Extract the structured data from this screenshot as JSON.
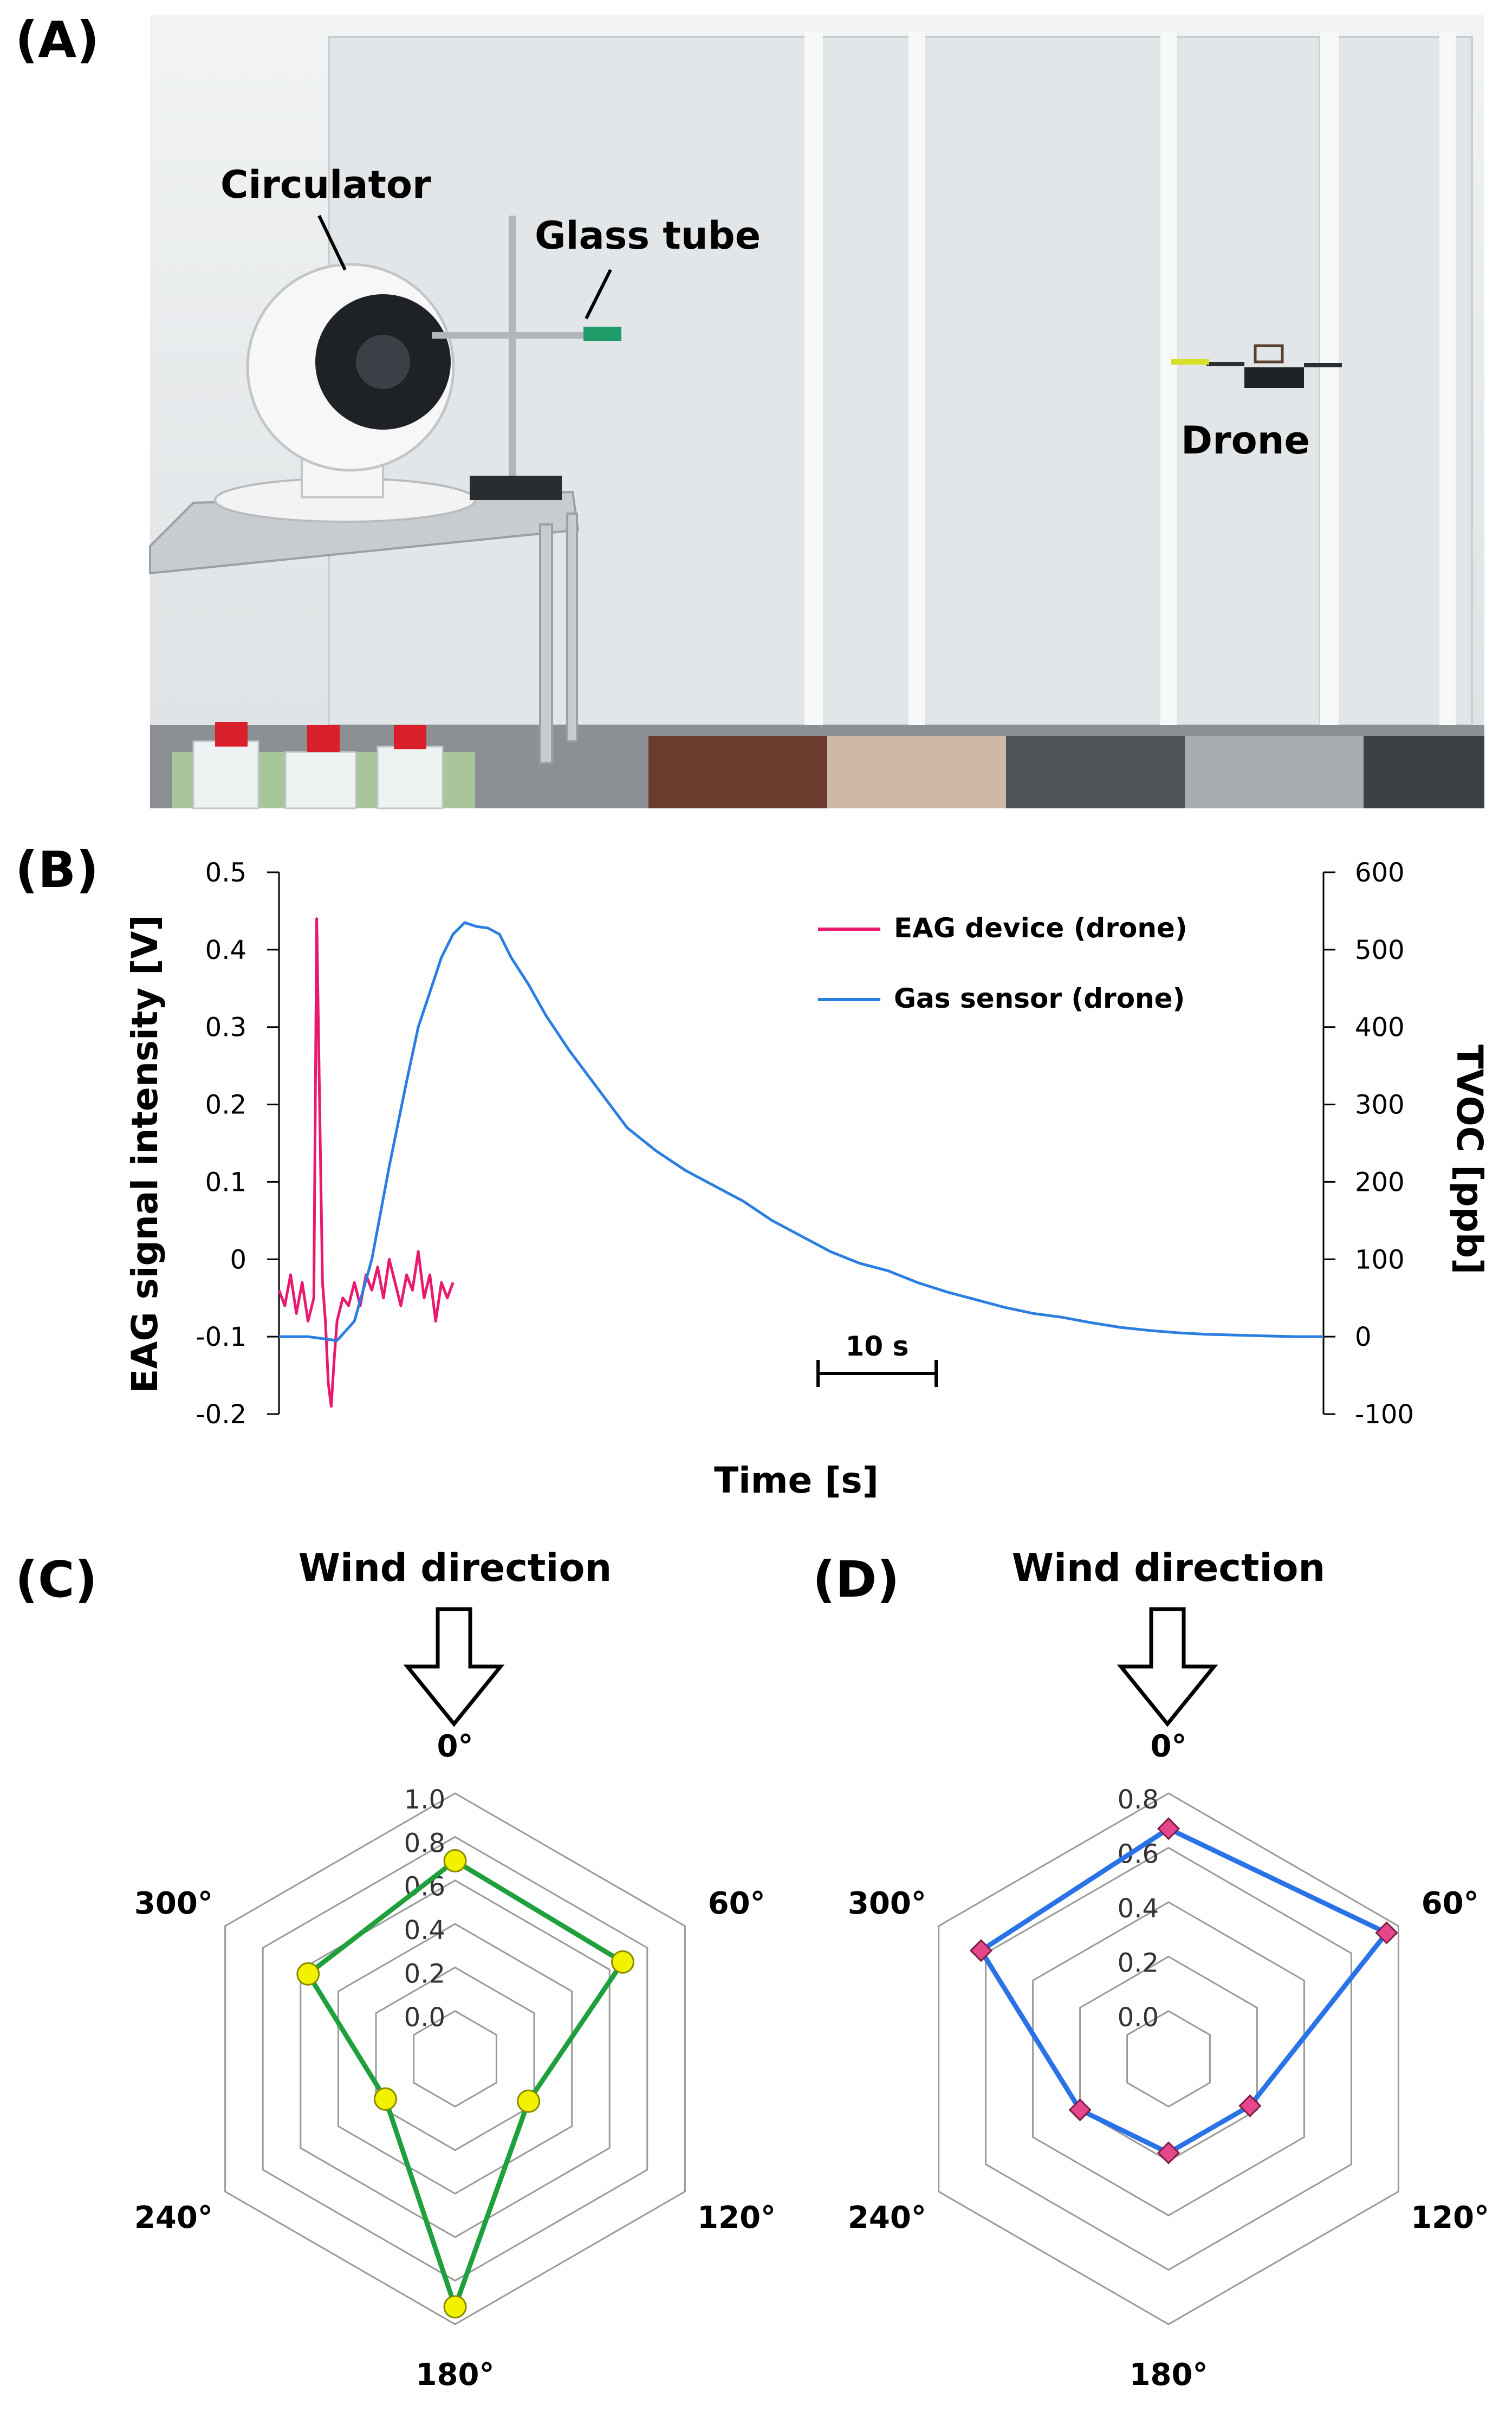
{
  "panels": {
    "a": {
      "letter": "(A)"
    },
    "b": {
      "letter": "(B)"
    },
    "c": {
      "letter": "(C)"
    },
    "d": {
      "letter": "(D)"
    }
  },
  "photo": {
    "labels": {
      "circulator": "Circulator",
      "glass_tube": "Glass tube",
      "drone": "Drone"
    }
  },
  "chart_data": [
    {
      "type": "line",
      "panel": "B",
      "xlabel": "Time [s]",
      "ylabel": "EAG signal intensity [V]",
      "y2label": "TVOC [ppb]",
      "ylim": [
        -0.2,
        0.5
      ],
      "yticks": [
        "0.5",
        "0.4",
        "0.3",
        "0.2",
        "0.1",
        "0",
        "-0.1",
        "-0.2"
      ],
      "y2lim": [
        -100,
        600
      ],
      "y2ticks": [
        "600",
        "500",
        "400",
        "300",
        "200",
        "100",
        "0",
        "-100"
      ],
      "scalebar": {
        "label": "10 s",
        "seconds": 10
      },
      "legend_position": "top-right",
      "colors": {
        "eag": "#e8196e",
        "gas": "#2a7de1"
      },
      "series": [
        {
          "name": "EAG device (drone)",
          "axis": "left",
          "x": [
            0,
            1,
            2,
            3,
            4,
            5,
            6,
            6.5,
            7,
            7.5,
            8,
            8.5,
            9,
            9.5,
            10,
            11,
            12,
            13,
            14,
            15,
            16,
            17,
            18,
            19,
            20,
            21,
            22,
            23,
            24,
            25,
            26,
            27,
            28,
            29,
            30
          ],
          "y": [
            -0.04,
            -0.06,
            -0.02,
            -0.07,
            -0.03,
            -0.08,
            -0.05,
            0.44,
            0.2,
            -0.03,
            -0.08,
            -0.16,
            -0.19,
            -0.13,
            -0.08,
            -0.05,
            -0.06,
            -0.03,
            -0.06,
            -0.02,
            -0.04,
            -0.01,
            -0.05,
            0.0,
            -0.03,
            -0.06,
            -0.02,
            -0.04,
            0.01,
            -0.05,
            -0.02,
            -0.08,
            -0.03,
            -0.05,
            -0.03
          ]
        },
        {
          "name": "Gas sensor (drone)",
          "axis": "right",
          "x": [
            0,
            5,
            10,
            13,
            16,
            19,
            22,
            24,
            26,
            28,
            30,
            32,
            34,
            36,
            38,
            40,
            43,
            46,
            50,
            55,
            60,
            65,
            70,
            75,
            80,
            85,
            90,
            95,
            100,
            105,
            110,
            115,
            120,
            125,
            130,
            135,
            140,
            145,
            150,
            155,
            160,
            165,
            170,
            175,
            180
          ],
          "y": [
            0,
            0,
            -5,
            20,
            100,
            220,
            330,
            400,
            445,
            490,
            520,
            535,
            530,
            528,
            520,
            490,
            455,
            415,
            370,
            320,
            270,
            240,
            215,
            195,
            175,
            150,
            130,
            110,
            95,
            85,
            70,
            58,
            48,
            38,
            30,
            25,
            18,
            12,
            8,
            5,
            3,
            2,
            1,
            0,
            0
          ]
        }
      ]
    },
    {
      "type": "radar",
      "panel": "C",
      "title": "Wind direction",
      "categories": [
        "0°",
        "60°",
        "120°",
        "180°",
        "240°",
        "300°"
      ],
      "rlim": [
        0,
        1.0
      ],
      "rticks": [
        "0.0",
        "0.2",
        "0.4",
        "0.6",
        "0.8",
        "1.0"
      ],
      "values": [
        0.69,
        0.67,
        0.17,
        0.92,
        0.15,
        0.56
      ],
      "line_color": "#1fa03c",
      "marker_color": "#f2f200"
    },
    {
      "type": "radar",
      "panel": "D",
      "title": "Wind direction",
      "categories": [
        "0°",
        "60°",
        "120°",
        "180°",
        "240°",
        "300°"
      ],
      "rlim": [
        0,
        0.8
      ],
      "rticks": [
        "0.0",
        "0.2",
        "0.4",
        "0.6",
        "0.8"
      ],
      "values": [
        0.67,
        0.75,
        0.17,
        0.17,
        0.2,
        0.62
      ],
      "line_color": "#2a72e8",
      "marker_color": "#e8468c"
    }
  ]
}
